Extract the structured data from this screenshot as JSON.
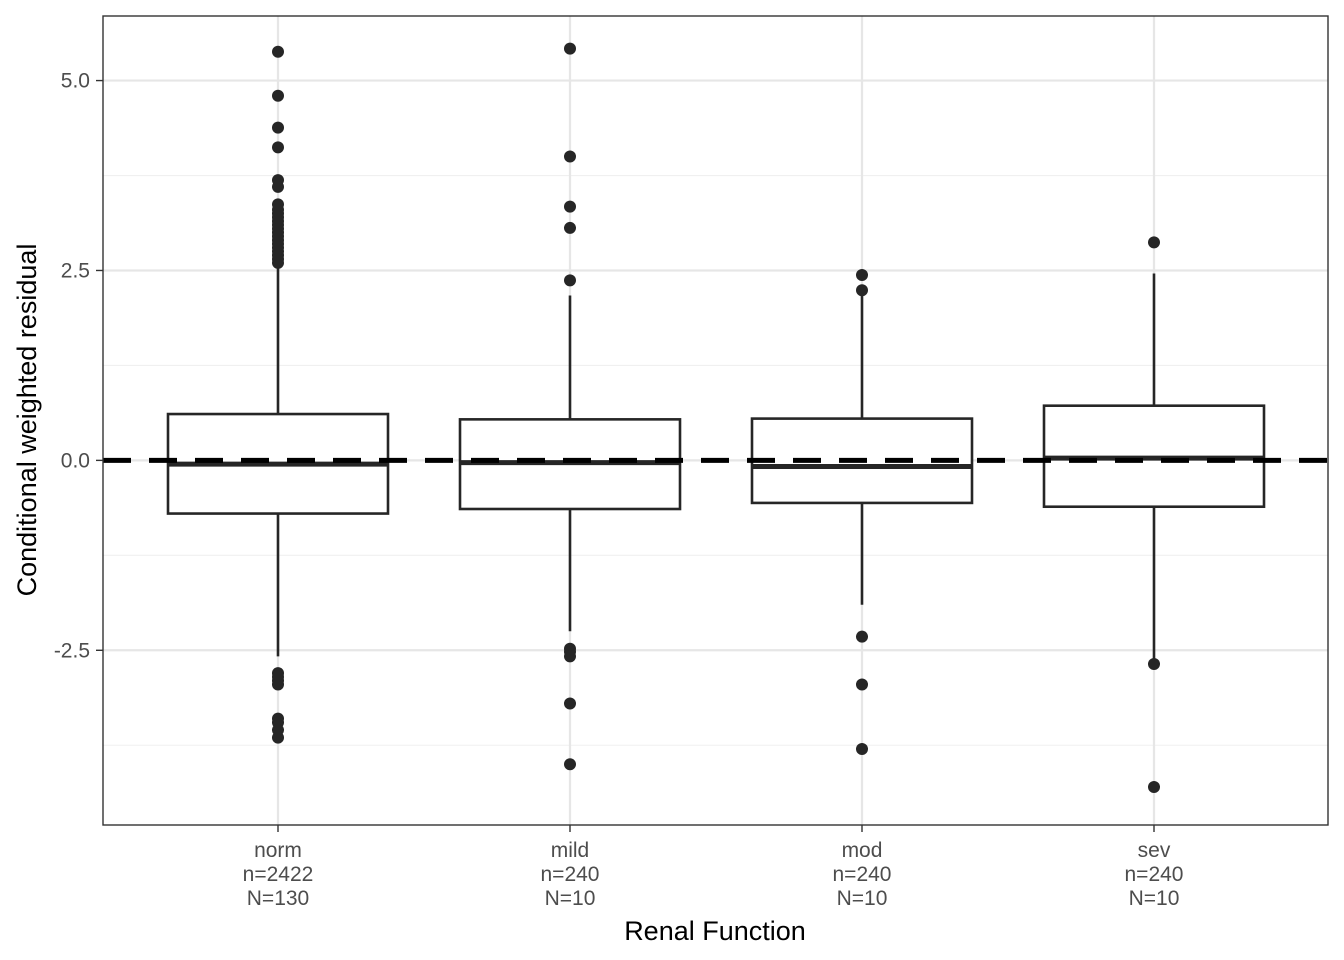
{
  "chart_data": {
    "type": "boxplot",
    "xlabel": "Renal Function",
    "ylabel": "Conditional weighted residual",
    "ylim": [
      -4.8,
      5.85
    ],
    "y_ticks": [
      -2.5,
      0.0,
      2.5,
      5.0
    ],
    "y_tick_labels": [
      "-2.5",
      "0.0",
      "2.5",
      "5.0"
    ],
    "y_minor_ticks": [
      -3.75,
      -1.25,
      1.25,
      3.75
    ],
    "grid": true,
    "reference_line": {
      "y": 0,
      "style": "dashed",
      "color": "#000000"
    },
    "categories": [
      "norm",
      "mild",
      "mod",
      "sev"
    ],
    "category_labels": [
      [
        "norm",
        "n=2422",
        "N=130"
      ],
      [
        "mild",
        "n=240",
        "N=10"
      ],
      [
        "mod",
        "n=240",
        "N=10"
      ],
      [
        "sev",
        "n=240",
        "N=10"
      ]
    ],
    "boxes": [
      {
        "category": "norm",
        "q1": -0.7,
        "median": -0.05,
        "q3": 0.61,
        "whisker_low": -2.58,
        "whisker_high": 2.58,
        "outliers": [
          5.38,
          4.8,
          4.38,
          4.12,
          3.69,
          3.6,
          3.37,
          3.3,
          3.25,
          3.2,
          3.15,
          3.1,
          3.05,
          3.0,
          2.95,
          2.9,
          2.85,
          2.8,
          2.75,
          2.7,
          2.65,
          2.6,
          -2.8,
          -2.85,
          -2.9,
          -2.95,
          -3.4,
          -3.45,
          -3.55,
          -3.65
        ]
      },
      {
        "category": "mild",
        "q1": -0.64,
        "median": -0.03,
        "q3": 0.54,
        "whisker_low": -2.25,
        "whisker_high": 2.17,
        "outliers": [
          5.42,
          4.0,
          3.34,
          3.06,
          2.37,
          -2.48,
          -2.52,
          -2.58,
          -3.2,
          -4.0
        ]
      },
      {
        "category": "mod",
        "q1": -0.56,
        "median": -0.08,
        "q3": 0.55,
        "whisker_low": -1.9,
        "whisker_high": 2.22,
        "outliers": [
          2.44,
          2.24,
          -2.32,
          -2.95,
          -3.8
        ]
      },
      {
        "category": "sev",
        "q1": -0.61,
        "median": 0.03,
        "q3": 0.72,
        "whisker_low": -2.65,
        "whisker_high": 2.46,
        "outliers": [
          2.87,
          -2.68,
          -4.3
        ]
      }
    ],
    "colors": {
      "box_stroke": "#262626",
      "outlier_fill": "#262626",
      "grid_major": "#e6e6e6",
      "grid_minor": "#f0f0f0",
      "panel_border": "#333333",
      "tick_text": "#4d4d4d",
      "title_text": "#000000"
    }
  }
}
